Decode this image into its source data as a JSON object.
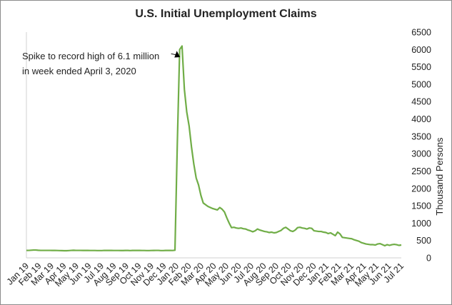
{
  "chart_data": {
    "type": "line",
    "title": "U.S. Initial Unemployment Claims",
    "xlabel": "",
    "ylabel": "Thousand Persons",
    "ylim": [
      0,
      6500
    ],
    "y_ticks": [
      0,
      500,
      1000,
      1500,
      2000,
      2500,
      3000,
      3500,
      4000,
      4500,
      5000,
      5500,
      6000,
      6500
    ],
    "y_axis_side": "right",
    "grid": false,
    "color": "#70ad47",
    "x_tick_labels": [
      "Jan 19",
      "Feb 19",
      "Mar 19",
      "Apr 19",
      "May 19",
      "Jun 19",
      "Jul 19",
      "Aug 19",
      "Sep 19",
      "Oct 19",
      "Nov 19",
      "Dec 19",
      "Jan 20",
      "Feb 20",
      "Mar 20",
      "Apr 20",
      "May 20",
      "Jun 20",
      "Jul 20",
      "Aug 20",
      "Sep 20",
      "Oct 20",
      "Nov 20",
      "Dec 20",
      "Jan 21",
      "Feb 21",
      "Mar 21",
      "Apr 21",
      "May 21",
      "Jun 21",
      "Jul 21"
    ],
    "annotation": {
      "lines": [
        "Spike to record high of 6.1 million",
        "in week ended April 3, 2020"
      ],
      "points_to_week": 65
    },
    "series": [
      {
        "values": [
          215,
          215,
          220,
          225,
          225,
          218,
          215,
          215,
          215,
          215,
          215,
          213,
          213,
          212,
          210,
          208,
          205,
          205,
          210,
          215,
          218,
          215,
          215,
          215,
          213,
          213,
          213,
          212,
          212,
          212,
          210,
          210,
          210,
          215,
          213,
          213,
          213,
          212,
          212,
          212,
          211,
          211,
          213,
          213,
          210,
          213,
          213,
          213,
          214,
          212,
          212,
          210,
          210,
          212,
          213,
          215,
          215,
          210,
          210,
          213,
          215,
          213,
          212,
          220,
          3300,
          6000,
          6100,
          4850,
          4200,
          3800,
          3200,
          2700,
          2300,
          2100,
          1800,
          1580,
          1530,
          1480,
          1450,
          1420,
          1400,
          1380,
          1450,
          1400,
          1320,
          1150,
          1000,
          870,
          880,
          860,
          850,
          860,
          840,
          830,
          800,
          780,
          750,
          780,
          830,
          800,
          780,
          760,
          750,
          730,
          740,
          720,
          730,
          760,
          790,
          850,
          880,
          830,
          780,
          760,
          800,
          870,
          880,
          860,
          850,
          830,
          860,
          850,
          780,
          770,
          760,
          760,
          740,
          730,
          700,
          720,
          680,
          640,
          740,
          690,
          590,
          580,
          570,
          560,
          550,
          520,
          500,
          480,
          440,
          420,
          400,
          390,
          380,
          380,
          370,
          400,
          410,
          380,
          350,
          380,
          360,
          380,
          390,
          380,
          360,
          370
        ]
      }
    ]
  }
}
